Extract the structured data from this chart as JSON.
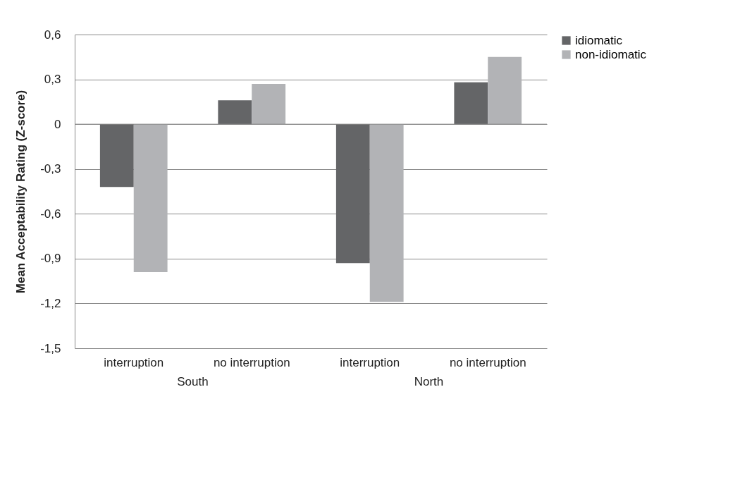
{
  "chart_data": {
    "type": "bar",
    "ylabel": "Mean Acceptability Rating (Z-score)",
    "categories": [
      "interruption",
      "no interruption",
      "interruption",
      "no interruption"
    ],
    "series": [
      {
        "name": "idiomatic",
        "color": "#646567",
        "values": [
          -0.42,
          0.16,
          -0.93,
          0.28
        ]
      },
      {
        "name": "non-idiomatic",
        "color": "#b2b3b6",
        "values": [
          -0.99,
          0.27,
          -1.19,
          0.45
        ]
      }
    ],
    "ylim": [
      -1.5,
      0.6
    ],
    "yticks": [
      {
        "value": -1.5,
        "label": "-1,5"
      },
      {
        "value": -1.2,
        "label": "-1,2"
      },
      {
        "value": -0.9,
        "label": "-0,9"
      },
      {
        "value": -0.6,
        "label": "-0,6"
      },
      {
        "value": -0.3,
        "label": "-0,3"
      },
      0,
      {
        "value": 0.3,
        "label": "0,3"
      },
      {
        "value": 0.6,
        "label": "0,6"
      }
    ],
    "annotations": [
      "South",
      "North"
    ],
    "grid": "y",
    "legend": "right"
  }
}
